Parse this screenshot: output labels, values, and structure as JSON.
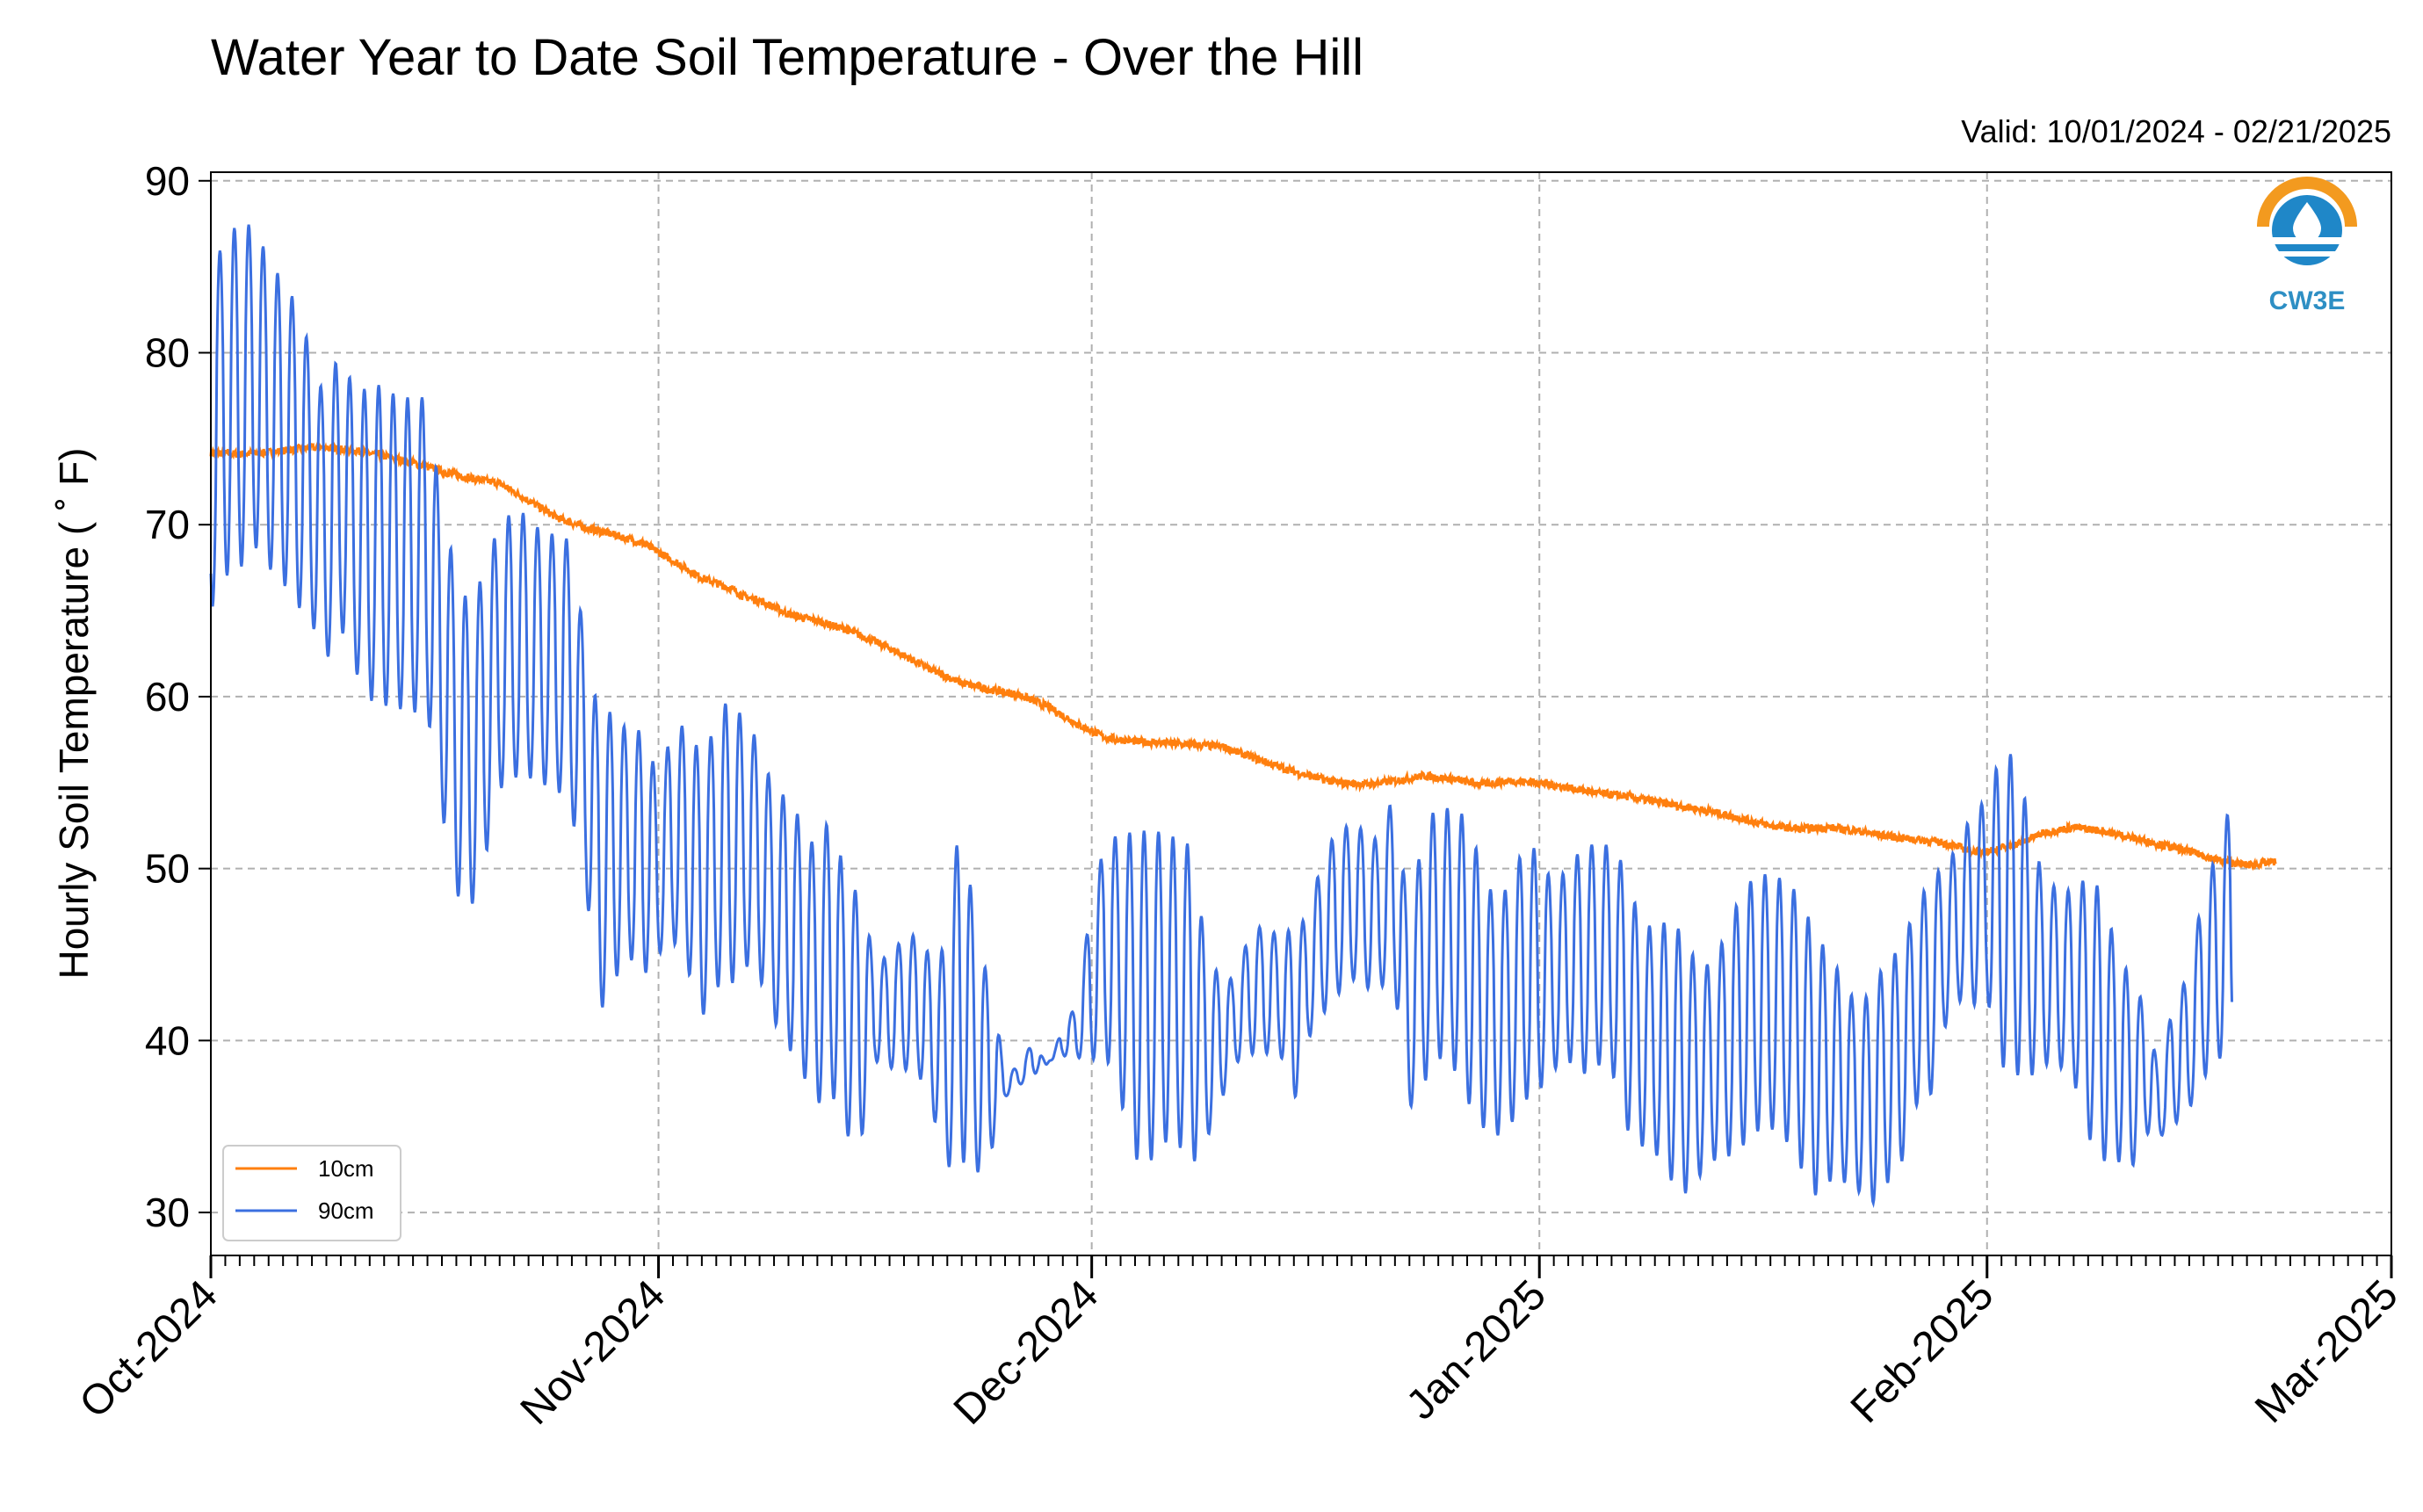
{
  "chart_data": {
    "type": "line",
    "title": "Water Year to Date Soil Temperature - Over the Hill",
    "subtitle": "Valid: 10/01/2024 - 02/21/2025",
    "xlabel": "",
    "ylabel": "Hourly Soil Temperature ($^\\circ$F)",
    "ylabel_display": "Hourly Soil Temperature ( ˚ F)",
    "xlim": [
      "2024-10-01",
      "2025-03-01"
    ],
    "ylim": [
      27.5,
      90.5
    ],
    "y_ticks": [
      30,
      40,
      50,
      60,
      70,
      80,
      90
    ],
    "x_ticks": [
      {
        "date": "2024-10-01",
        "label": "Oct-2024"
      },
      {
        "date": "2024-11-01",
        "label": "Nov-2024"
      },
      {
        "date": "2024-12-01",
        "label": "Dec-2024"
      },
      {
        "date": "2025-01-01",
        "label": "Jan-2025"
      },
      {
        "date": "2025-02-01",
        "label": "Feb-2025"
      },
      {
        "date": "2025-03-01",
        "label": "Mar-2025"
      }
    ],
    "grid": true,
    "legend": "lower-left",
    "logo_text": "CW3E",
    "series": [
      {
        "name": "10cm",
        "color": "#ff7f0e",
        "x": [
          "2024-10-01",
          "2024-10-03",
          "2024-10-05",
          "2024-10-07",
          "2024-10-09",
          "2024-10-11",
          "2024-10-13",
          "2024-10-15",
          "2024-10-17",
          "2024-10-19",
          "2024-10-21",
          "2024-10-23",
          "2024-10-25",
          "2024-10-27",
          "2024-10-29",
          "2024-10-31",
          "2024-11-02",
          "2024-11-04",
          "2024-11-06",
          "2024-11-07",
          "2024-11-08",
          "2024-11-10",
          "2024-11-12",
          "2024-11-14",
          "2024-11-16",
          "2024-11-18",
          "2024-11-20",
          "2024-11-22",
          "2024-11-24",
          "2024-11-26",
          "2024-11-28",
          "2024-11-30",
          "2024-12-02",
          "2024-12-04",
          "2024-12-06",
          "2024-12-08",
          "2024-12-10",
          "2024-12-12",
          "2024-12-14",
          "2024-12-16",
          "2024-12-18",
          "2024-12-20",
          "2024-12-22",
          "2024-12-24",
          "2024-12-26",
          "2024-12-28",
          "2024-12-30",
          "2025-01-01",
          "2025-01-03",
          "2025-01-05",
          "2025-01-07",
          "2025-01-09",
          "2025-01-11",
          "2025-01-13",
          "2025-01-15",
          "2025-01-17",
          "2025-01-19",
          "2025-01-21",
          "2025-01-23",
          "2025-01-25",
          "2025-01-27",
          "2025-01-29",
          "2025-01-31",
          "2025-02-01",
          "2025-02-03",
          "2025-02-05",
          "2025-02-07",
          "2025-02-09",
          "2025-02-11",
          "2025-02-13",
          "2025-02-15",
          "2025-02-17",
          "2025-02-19",
          "2025-02-21"
        ],
        "y": [
          74.2,
          74.1,
          74.2,
          74.4,
          74.5,
          74.3,
          74.0,
          73.6,
          73.1,
          72.7,
          72.4,
          71.4,
          70.4,
          69.8,
          69.4,
          68.9,
          67.9,
          66.9,
          66.3,
          65.8,
          65.6,
          64.8,
          64.4,
          63.9,
          63.2,
          62.4,
          61.5,
          60.8,
          60.4,
          60.1,
          59.4,
          58.4,
          57.6,
          57.4,
          57.3,
          57.2,
          57.1,
          56.5,
          55.9,
          55.4,
          55.0,
          54.9,
          55.1,
          55.4,
          55.2,
          54.9,
          55.1,
          55.0,
          54.7,
          54.4,
          54.2,
          53.9,
          53.6,
          53.3,
          52.9,
          52.5,
          52.3,
          52.4,
          52.2,
          51.9,
          51.7,
          51.5,
          51.0,
          51.0,
          51.4,
          52.1,
          52.4,
          52.2,
          51.8,
          51.4,
          51.0,
          50.5,
          50.2,
          50.4
        ]
      },
      {
        "name": "90cm",
        "color": "#3b6fe0",
        "x": [
          "2024-10-01",
          "2024-10-02",
          "2024-10-03",
          "2024-10-04",
          "2024-10-05",
          "2024-10-06",
          "2024-10-07",
          "2024-10-08",
          "2024-10-09",
          "2024-10-10",
          "2024-10-11",
          "2024-10-12",
          "2024-10-13",
          "2024-10-14",
          "2024-10-15",
          "2024-10-16",
          "2024-10-17",
          "2024-10-18",
          "2024-10-19",
          "2024-10-20",
          "2024-10-21",
          "2024-10-22",
          "2024-10-23",
          "2024-10-24",
          "2024-10-25",
          "2024-10-26",
          "2024-10-27",
          "2024-10-28",
          "2024-10-29",
          "2024-10-30",
          "2024-10-31",
          "2024-11-01",
          "2024-11-02",
          "2024-11-03",
          "2024-11-04",
          "2024-11-05",
          "2024-11-06",
          "2024-11-07",
          "2024-11-08",
          "2024-11-09",
          "2024-11-10",
          "2024-11-11",
          "2024-11-12",
          "2024-11-13",
          "2024-11-14",
          "2024-11-15",
          "2024-11-16",
          "2024-11-17",
          "2024-11-18",
          "2024-11-19",
          "2024-11-20",
          "2024-11-21",
          "2024-11-22",
          "2024-11-23",
          "2024-11-24",
          "2024-11-25",
          "2024-11-26",
          "2024-11-27",
          "2024-11-28",
          "2024-11-29",
          "2024-11-30",
          "2024-12-01",
          "2024-12-02",
          "2024-12-03",
          "2024-12-04",
          "2024-12-05",
          "2024-12-06",
          "2024-12-07",
          "2024-12-08",
          "2024-12-09",
          "2024-12-10",
          "2024-12-11",
          "2024-12-12",
          "2024-12-13",
          "2024-12-14",
          "2024-12-15",
          "2024-12-16",
          "2024-12-17",
          "2024-12-18",
          "2024-12-19",
          "2024-12-20",
          "2024-12-21",
          "2024-12-22",
          "2024-12-23",
          "2024-12-24",
          "2024-12-25",
          "2024-12-26",
          "2024-12-27",
          "2024-12-28",
          "2024-12-29",
          "2024-12-30",
          "2024-12-31",
          "2025-01-01",
          "2025-01-02",
          "2025-01-03",
          "2025-01-04",
          "2025-01-05",
          "2025-01-06",
          "2025-01-07",
          "2025-01-08",
          "2025-01-09",
          "2025-01-10",
          "2025-01-11",
          "2025-01-12",
          "2025-01-13",
          "2025-01-14",
          "2025-01-15",
          "2025-01-16",
          "2025-01-17",
          "2025-01-18",
          "2025-01-19",
          "2025-01-20",
          "2025-01-21",
          "2025-01-22",
          "2025-01-23",
          "2025-01-24",
          "2025-01-25",
          "2025-01-26",
          "2025-01-27",
          "2025-01-28",
          "2025-01-29",
          "2025-01-30",
          "2025-01-31",
          "2025-02-01",
          "2025-02-02",
          "2025-02-03",
          "2025-02-04",
          "2025-02-05",
          "2025-02-06",
          "2025-02-07",
          "2025-02-08",
          "2025-02-09",
          "2025-02-10",
          "2025-02-11",
          "2025-02-12",
          "2025-02-13",
          "2025-02-14",
          "2025-02-15",
          "2025-02-16",
          "2025-02-17",
          "2025-02-18",
          "2025-02-19",
          "2025-02-20",
          "2025-02-21"
        ],
        "max": [
          85.0,
          86.5,
          87.7,
          87.3,
          85.5,
          84.1,
          82.8,
          79.8,
          77.0,
          80.8,
          77.2,
          78.3,
          78.0,
          77.4,
          77.4,
          77.4,
          70.8,
          67.3,
          65.0,
          67.7,
          70.1,
          70.8,
          70.6,
          69.4,
          69.5,
          69.0,
          62.5,
          58.6,
          59.4,
          57.6,
          58.3,
          54.9,
          58.3,
          58.3,
          56.5,
          58.4,
          60.3,
          58.3,
          57.5,
          54.3,
          54.3,
          52.5,
          51.0,
          53.5,
          49.0,
          48.6,
          44.5,
          45.0,
          46.0,
          46.2,
          44.6,
          45.7,
          54.5,
          45.5,
          43.5,
          38.1,
          38.5,
          40.1,
          38.3,
          40.9,
          42.1,
          48.3,
          51.8,
          51.9,
          52.2,
          52.2,
          52.1,
          51.7,
          51.3,
          44.6,
          43.8,
          43.5,
          46.6,
          46.6,
          46.1,
          46.6,
          47.2,
          50.8,
          52.2,
          52.6,
          52.2,
          51.5,
          54.9,
          46.5,
          52.8,
          53.5,
          53.5,
          53.0,
          50.1,
          48.0,
          49.2,
          51.5,
          51.0,
          48.9,
          50.2,
          51.2,
          51.5,
          51.3,
          50.0,
          46.8,
          46.6,
          47.0,
          46.2,
          44.3,
          44.5,
          46.4,
          48.7,
          49.6,
          49.7,
          49.3,
          48.5,
          46.4,
          45.1,
          43.7,
          42.0,
          42.9,
          44.7,
          45.3,
          47.7,
          49.3,
          50.2,
          51.3,
          53.4,
          54.0,
          56.9,
          56.5,
          52.6,
          49.0,
          49.0,
          48.6,
          49.7,
          48.6,
          45.2,
          43.6,
          41.9,
          37.8,
          43.0,
          43.5,
          49.2,
          50.9,
          54.4,
          50.7
        ],
        "min": [
          65.0,
          67.0,
          67.4,
          68.8,
          67.5,
          66.6,
          65.3,
          64.2,
          62.1,
          64.0,
          61.5,
          59.8,
          59.5,
          59.3,
          59.1,
          59.0,
          53.3,
          48.5,
          47.6,
          50.6,
          54.6,
          55.3,
          55.3,
          54.9,
          54.6,
          53.1,
          48.5,
          41.7,
          43.6,
          44.8,
          43.8,
          45.0,
          45.8,
          44.2,
          41.3,
          43.1,
          43.2,
          44.4,
          43.6,
          41.1,
          39.6,
          38.0,
          36.3,
          36.9,
          34.5,
          34.0,
          38.8,
          38.4,
          38.3,
          38.1,
          35.7,
          32.6,
          33.0,
          32.2,
          33.4,
          36.7,
          37.4,
          38.0,
          38.8,
          39.1,
          39.0,
          38.9,
          39.0,
          36.5,
          33.1,
          32.9,
          34.1,
          33.9,
          32.8,
          34.3,
          36.6,
          38.7,
          39.2,
          39.2,
          39.4,
          36.3,
          40.1,
          41.5,
          42.6,
          43.6,
          43.0,
          43.2,
          42.8,
          36.0,
          37.5,
          39.0,
          38.5,
          36.5,
          35.0,
          34.4,
          35.1,
          36.5,
          37.1,
          38.3,
          38.8,
          38.0,
          38.6,
          38.3,
          34.9,
          33.9,
          33.5,
          32.0,
          31.0,
          32.0,
          33.0,
          33.2,
          33.8,
          34.7,
          34.9,
          34.3,
          32.8,
          30.9,
          31.8,
          31.8,
          31.3,
          30.4,
          31.6,
          32.6,
          36.2,
          36.4,
          40.6,
          42.3,
          42.0,
          42.5,
          38.5,
          38.0,
          37.9,
          38.6,
          38.5,
          37.7,
          34.4,
          33.0,
          33.0,
          32.5,
          34.6,
          34.4,
          35.1,
          36.0,
          37.8,
          38.9,
          39.4
        ]
      }
    ]
  }
}
